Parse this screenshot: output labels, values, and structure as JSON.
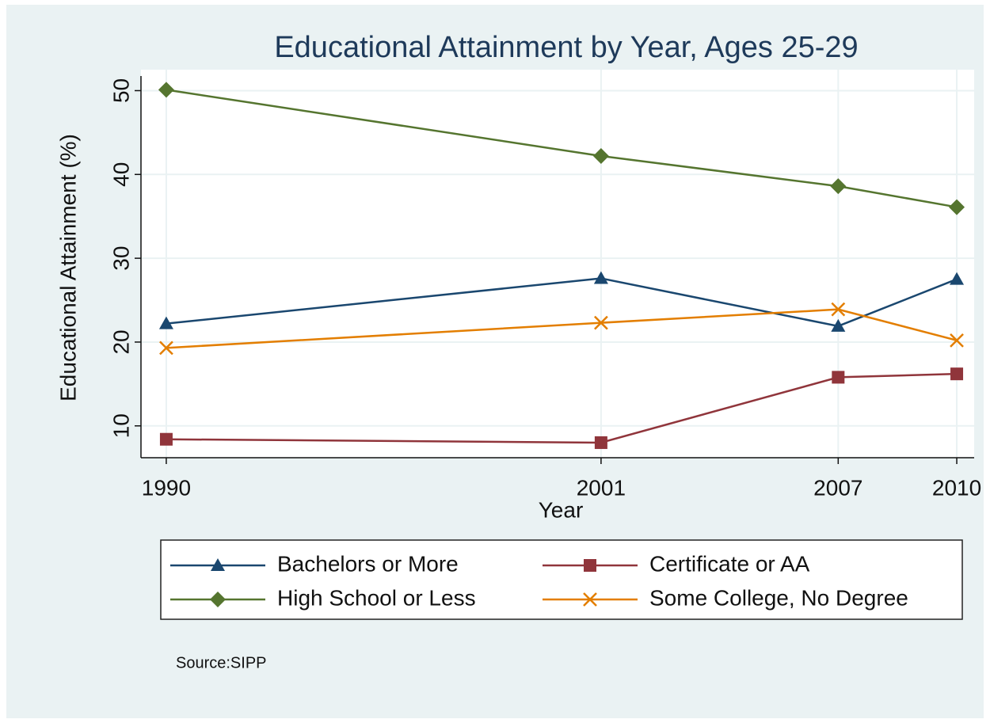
{
  "chart_data": {
    "type": "line",
    "title": "Educational Attainment by Year, Ages 25-29",
    "x_label": "Year",
    "y_label": "Educational Attainment (%)",
    "source": "Source:SIPP",
    "x": [
      1990,
      2001,
      2007,
      2010
    ],
    "series": [
      {
        "name": "Bachelors or More",
        "color": "#1a476f",
        "marker": "triangle",
        "values": [
          22.2,
          27.6,
          21.9,
          27.5
        ]
      },
      {
        "name": "Certificate or AA",
        "color": "#90353b",
        "marker": "square",
        "values": [
          8.4,
          8.0,
          15.8,
          16.2
        ]
      },
      {
        "name": "High School or Less",
        "color": "#55752f",
        "marker": "diamond",
        "values": [
          50.1,
          42.2,
          38.6,
          36.1
        ]
      },
      {
        "name": "Some College, No Degree",
        "color": "#e37e00",
        "marker": "x",
        "values": [
          19.3,
          22.3,
          23.9,
          20.2
        ]
      }
    ],
    "xlim": [
      1989.36,
      2010.44
    ],
    "xticks": [
      1990,
      2001,
      2007,
      2010
    ],
    "ylim": [
      6.2,
      52.5
    ],
    "yticks": [
      10,
      20,
      30,
      40,
      50
    ],
    "grid": true,
    "legend": "bottom"
  }
}
